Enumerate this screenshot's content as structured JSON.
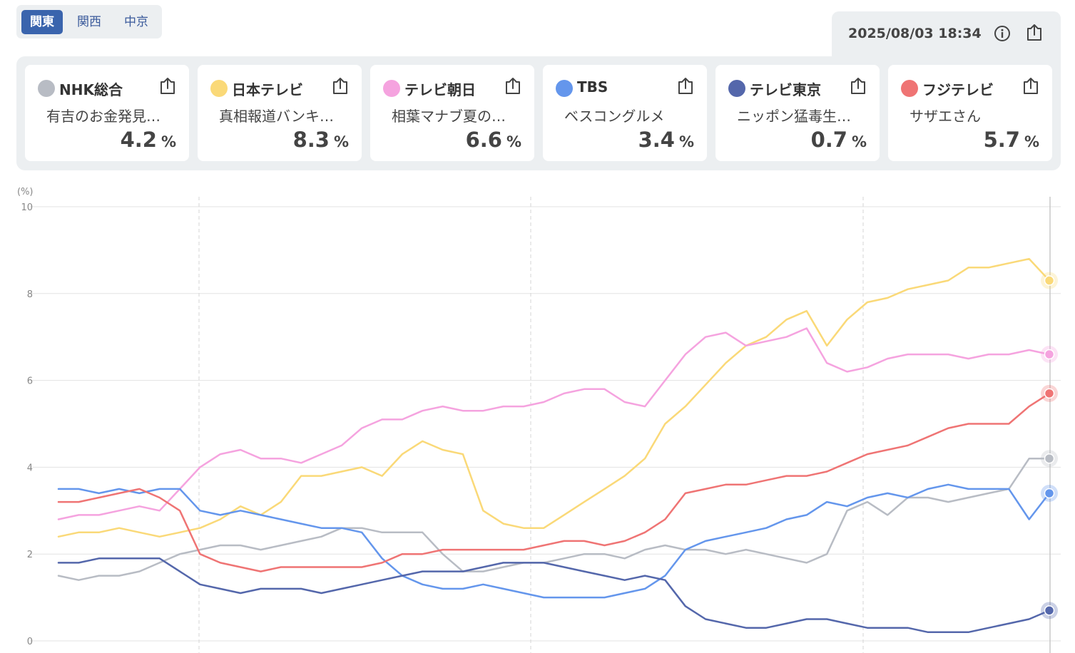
{
  "region_tabs": {
    "items": [
      "関東",
      "関西",
      "中京"
    ],
    "active": "関東"
  },
  "header": {
    "timestamp": "2025/08/03 18:34",
    "info_icon": "info-circle-icon",
    "share_icon": "share-export-icon"
  },
  "channels": [
    {
      "name": "NHK総合",
      "program": "有吉のお金発見…",
      "rating": "4.2",
      "unit": "%",
      "color": "#b8bcc4"
    },
    {
      "name": "日本テレビ",
      "program": "真相報道バンキ…",
      "rating": "8.3",
      "unit": "%",
      "color": "#fad978"
    },
    {
      "name": "テレビ朝日",
      "program": "相葉マナブ夏の…",
      "rating": "6.6",
      "unit": "%",
      "color": "#f5a3df"
    },
    {
      "name": "TBS",
      "program": "ベスコングルメ",
      "rating": "3.4",
      "unit": "%",
      "color": "#6496ec"
    },
    {
      "name": "テレビ東京",
      "program": "ニッポン猛毒生…",
      "rating": "0.7",
      "unit": "%",
      "color": "#5467ab"
    },
    {
      "name": "フジテレビ",
      "program": "サザエさん",
      "rating": "5.7",
      "unit": "%",
      "color": "#ef7474"
    }
  ],
  "chart_data": {
    "type": "line",
    "ylabel": "(%)",
    "ylim": [
      0,
      10
    ],
    "yticks": [
      "0",
      "2",
      "4",
      "6",
      "8",
      "10"
    ],
    "grid": true,
    "series": [
      {
        "name": "NHK総合",
        "color": "#b8bcc4",
        "values": [
          1.5,
          1.4,
          1.5,
          1.5,
          1.6,
          1.8,
          2.0,
          2.1,
          2.2,
          2.2,
          2.1,
          2.2,
          2.3,
          2.4,
          2.6,
          2.6,
          2.5,
          2.5,
          2.5,
          2.0,
          1.6,
          1.6,
          1.7,
          1.8,
          1.8,
          1.9,
          2.0,
          2.0,
          1.9,
          2.1,
          2.2,
          2.1,
          2.1,
          2.0,
          2.1,
          2.0,
          1.9,
          1.8,
          2.0,
          3.0,
          3.2,
          2.9,
          3.3,
          3.3,
          3.2,
          3.3,
          3.4,
          3.5,
          4.2,
          4.2
        ]
      },
      {
        "name": "日本テレビ",
        "color": "#fad978",
        "values": [
          2.4,
          2.5,
          2.5,
          2.6,
          2.5,
          2.4,
          2.5,
          2.6,
          2.8,
          3.1,
          2.9,
          3.2,
          3.8,
          3.8,
          3.9,
          4.0,
          3.8,
          4.3,
          4.6,
          4.4,
          4.3,
          3.0,
          2.7,
          2.6,
          2.6,
          2.9,
          3.2,
          3.5,
          3.8,
          4.2,
          5.0,
          5.4,
          5.9,
          6.4,
          6.8,
          7.0,
          7.4,
          7.6,
          6.8,
          7.4,
          7.8,
          7.9,
          8.1,
          8.2,
          8.3,
          8.6,
          8.6,
          8.7,
          8.8,
          8.3
        ]
      },
      {
        "name": "テレビ朝日",
        "color": "#f5a3df",
        "values": [
          2.8,
          2.9,
          2.9,
          3.0,
          3.1,
          3.0,
          3.5,
          4.0,
          4.3,
          4.4,
          4.2,
          4.2,
          4.1,
          4.3,
          4.5,
          4.9,
          5.1,
          5.1,
          5.3,
          5.4,
          5.3,
          5.3,
          5.4,
          5.4,
          5.5,
          5.7,
          5.8,
          5.8,
          5.5,
          5.4,
          6.0,
          6.6,
          7.0,
          7.1,
          6.8,
          6.9,
          7.0,
          7.2,
          6.4,
          6.2,
          6.3,
          6.5,
          6.6,
          6.6,
          6.6,
          6.5,
          6.6,
          6.6,
          6.7,
          6.6
        ]
      },
      {
        "name": "TBS",
        "color": "#6496ec",
        "values": [
          3.5,
          3.5,
          3.4,
          3.5,
          3.4,
          3.5,
          3.5,
          3.0,
          2.9,
          3.0,
          2.9,
          2.8,
          2.7,
          2.6,
          2.6,
          2.5,
          1.9,
          1.5,
          1.3,
          1.2,
          1.2,
          1.3,
          1.2,
          1.1,
          1.0,
          1.0,
          1.0,
          1.0,
          1.1,
          1.2,
          1.5,
          2.1,
          2.3,
          2.4,
          2.5,
          2.6,
          2.8,
          2.9,
          3.2,
          3.1,
          3.3,
          3.4,
          3.3,
          3.5,
          3.6,
          3.5,
          3.5,
          3.5,
          2.8,
          3.4
        ]
      },
      {
        "name": "テレビ東京",
        "color": "#5467ab",
        "values": [
          1.8,
          1.8,
          1.9,
          1.9,
          1.9,
          1.9,
          1.6,
          1.3,
          1.2,
          1.1,
          1.2,
          1.2,
          1.2,
          1.1,
          1.2,
          1.3,
          1.4,
          1.5,
          1.6,
          1.6,
          1.6,
          1.7,
          1.8,
          1.8,
          1.8,
          1.7,
          1.6,
          1.5,
          1.4,
          1.5,
          1.4,
          0.8,
          0.5,
          0.4,
          0.3,
          0.3,
          0.4,
          0.5,
          0.5,
          0.4,
          0.3,
          0.3,
          0.3,
          0.2,
          0.2,
          0.2,
          0.3,
          0.4,
          0.5,
          0.7
        ]
      },
      {
        "name": "フジテレビ",
        "color": "#ef7474",
        "values": [
          3.2,
          3.2,
          3.3,
          3.4,
          3.5,
          3.3,
          3.0,
          2.0,
          1.8,
          1.7,
          1.6,
          1.7,
          1.7,
          1.7,
          1.7,
          1.7,
          1.8,
          2.0,
          2.0,
          2.1,
          2.1,
          2.1,
          2.1,
          2.1,
          2.2,
          2.3,
          2.3,
          2.2,
          2.3,
          2.5,
          2.8,
          3.4,
          3.5,
          3.6,
          3.6,
          3.7,
          3.8,
          3.8,
          3.9,
          4.1,
          4.3,
          4.4,
          4.5,
          4.7,
          4.9,
          5.0,
          5.0,
          5.0,
          5.4,
          5.7
        ]
      }
    ]
  }
}
